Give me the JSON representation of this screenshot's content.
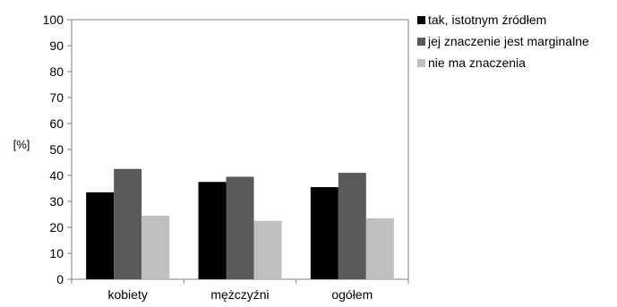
{
  "chart_data": {
    "type": "bar",
    "title": "",
    "xlabel": "",
    "ylabel": "[%]",
    "ylim": [
      0,
      100
    ],
    "yticks": [
      0,
      10,
      20,
      30,
      40,
      50,
      60,
      70,
      80,
      90,
      100
    ],
    "grid": false,
    "legend_position": "top-right",
    "categories": [
      "kobiety",
      "mężczyźni",
      "ogółem"
    ],
    "series": [
      {
        "name": "tak, istotnym źródłem",
        "values": [
          33.5,
          37.5,
          35.5
        ],
        "color": "#000000"
      },
      {
        "name": "jej znaczenie jest marginalne",
        "values": [
          42.5,
          39.5,
          41
        ],
        "color": "#5a5a5a"
      },
      {
        "name": "nie ma znaczenia",
        "values": [
          24.5,
          22.5,
          23.5
        ],
        "color": "#c0c0c0"
      }
    ]
  }
}
